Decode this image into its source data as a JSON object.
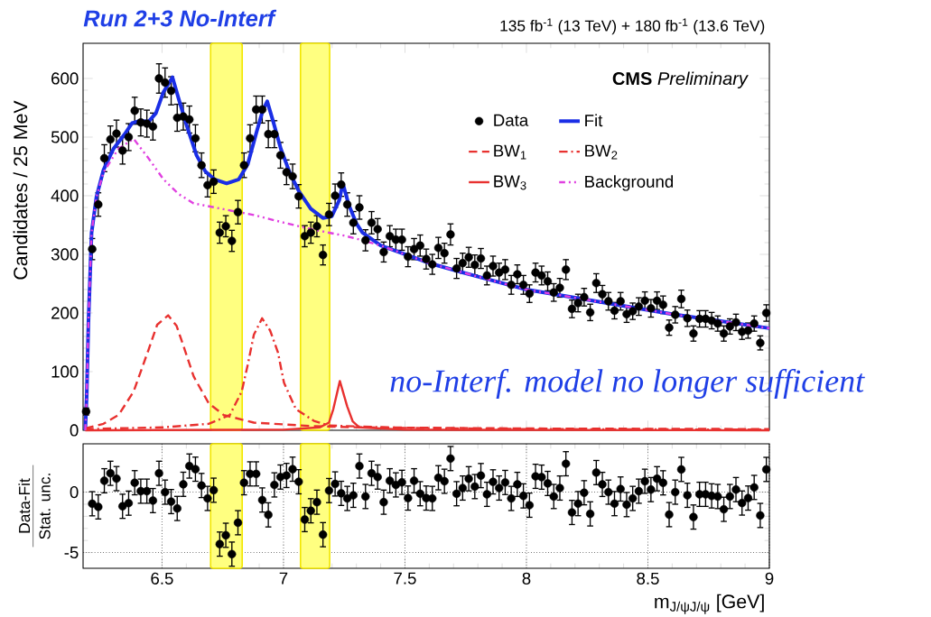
{
  "chart_data": [
    {
      "type": "scatter",
      "title": "135 fb$^{-1}$ (13 TeV) + 180 fb$^{-1}$ (13.6 TeV)",
      "ylabel": "Candidates / 25 MeV",
      "annotations": [
        "Run 2+3 No-Interf",
        "**CMS** *Preliminary*",
        "no-Interf. model no longer sufficient"
      ],
      "x": [
        6.1875,
        6.2125,
        6.2375,
        6.2625,
        6.2875,
        6.3125,
        6.3375,
        6.3625,
        6.3875,
        6.4125,
        6.4375,
        6.4625,
        6.4875,
        6.5125,
        6.5375,
        6.5625,
        6.5875,
        6.6125,
        6.6375,
        6.6625,
        6.6875,
        6.7125,
        6.7375,
        6.7625,
        6.7875,
        6.8125,
        6.8375,
        6.8625,
        6.8875,
        6.9125,
        6.9375,
        6.9625,
        6.9875,
        7.0125,
        7.0375,
        7.0625,
        7.0875,
        7.1125,
        7.1375,
        7.1625,
        7.1875,
        7.2125,
        7.2375,
        7.2625,
        7.2875,
        7.3125,
        7.3375,
        7.3625,
        7.3875,
        7.4125,
        7.4375,
        7.4625,
        7.4875,
        7.5125,
        7.5375,
        7.5625,
        7.5875,
        7.6125,
        7.6375,
        7.6625,
        7.6875,
        7.7125,
        7.7375,
        7.7625,
        7.7875,
        7.8125,
        7.8375,
        7.8625,
        7.8875,
        7.9125,
        7.9375,
        7.9625,
        7.9875,
        8.0125,
        8.0375,
        8.0625,
        8.0875,
        8.1125,
        8.1375,
        8.1625,
        8.1875,
        8.2125,
        8.2375,
        8.2625,
        8.2875,
        8.3125,
        8.3375,
        8.3625,
        8.3875,
        8.4125,
        8.4375,
        8.4625,
        8.4875,
        8.5125,
        8.5375,
        8.5625,
        8.5875,
        8.6125,
        8.6375,
        8.6625,
        8.6875,
        8.7125,
        8.7375,
        8.7625,
        8.7875,
        8.8125,
        8.8375,
        8.8625,
        8.8875,
        8.9125,
        8.9375,
        8.9625,
        8.9875
      ],
      "series": [
        {
          "name": "Data",
          "type": "scatter",
          "color": "#000000",
          "marker": "circle",
          "values": [
            32,
            309,
            385,
            464,
            496,
            506,
            477,
            500,
            545,
            525,
            523,
            518,
            600,
            593,
            579,
            533,
            535,
            530,
            498,
            452,
            418,
            424,
            337,
            348,
            323,
            372,
            452,
            498,
            547,
            547,
            505,
            505,
            469,
            440,
            433,
            399,
            331,
            337,
            348,
            299,
            368,
            400,
            419,
            385,
            354,
            380,
            324,
            354,
            343,
            304,
            331,
            325,
            325,
            296,
            309,
            315,
            292,
            283,
            311,
            302,
            334,
            276,
            285,
            295,
            282,
            293,
            264,
            280,
            269,
            274,
            248,
            266,
            248,
            233,
            269,
            264,
            254,
            235,
            243,
            274,
            207,
            217,
            227,
            201,
            251,
            232,
            220,
            204,
            220,
            198,
            203,
            211,
            221,
            208,
            221,
            214,
            175,
            197,
            224,
            191,
            165,
            190,
            190,
            187,
            182,
            165,
            177,
            184,
            168,
            170,
            182,
            149,
            200
          ],
          "errors": [
            6,
            18,
            20,
            23,
            23,
            23,
            23,
            23,
            23,
            23,
            23,
            23,
            25,
            25,
            24,
            23,
            23,
            23,
            23,
            21,
            20,
            20,
            18,
            18,
            18,
            20,
            21,
            23,
            23,
            23,
            23,
            23,
            22,
            21,
            21,
            20,
            18,
            18,
            18,
            17,
            19,
            20,
            20,
            20,
            19,
            20,
            18,
            19,
            18,
            17,
            18,
            18,
            18,
            17,
            18,
            18,
            17,
            17,
            18,
            17,
            18,
            17,
            17,
            17,
            17,
            17,
            16,
            17,
            16,
            17,
            16,
            16,
            16,
            15,
            16,
            16,
            16,
            15,
            16,
            17,
            15,
            15,
            15,
            14,
            16,
            15,
            15,
            14,
            15,
            14,
            14,
            15,
            15,
            15,
            15,
            15,
            13,
            14,
            15,
            14,
            13,
            14,
            14,
            14,
            13,
            13,
            13,
            14,
            13,
            13,
            13,
            12,
            14
          ]
        },
        {
          "name": "Fit",
          "type": "line",
          "color": "#1a2ee6",
          "line_style": "solid",
          "x": [
            6.184,
            6.19,
            6.197,
            6.21,
            6.23,
            6.259,
            6.3,
            6.346,
            6.377,
            6.41,
            6.444,
            6.475,
            6.506,
            6.543,
            6.568,
            6.605,
            6.642,
            6.679,
            6.716,
            6.766,
            6.816,
            6.853,
            6.89,
            6.915,
            6.933,
            6.958,
            6.989,
            7.026,
            7.063,
            7.112,
            7.162,
            7.199,
            7.23,
            7.244,
            7.27,
            7.301,
            7.325,
            7.4,
            7.6,
            7.8,
            8.0,
            8.2,
            8.4,
            8.6,
            8.8,
            9.0
          ],
          "values": [
            0,
            60,
            184,
            337,
            398,
            444,
            480,
            505,
            524,
            528,
            526,
            541,
            577,
            602,
            566,
            515,
            469,
            441,
            428,
            421,
            428,
            454,
            510,
            546,
            561,
            526,
            480,
            439,
            408,
            378,
            362,
            365,
            393,
            421,
            383,
            352,
            337,
            315,
            285,
            262,
            240,
            226,
            212,
            198,
            186,
            174
          ]
        },
        {
          "name": "BW$_{1}$",
          "type": "line",
          "color": "#e8312f",
          "line_style": "dashed",
          "x": [
            6.184,
            6.259,
            6.321,
            6.383,
            6.445,
            6.48,
            6.525,
            6.56,
            6.593,
            6.63,
            6.692,
            6.754,
            6.878,
            7.125,
            7.311,
            8.0,
            9.0
          ],
          "values": [
            3,
            11,
            26,
            66,
            138,
            180,
            196,
            178,
            138,
            92,
            46,
            26,
            13,
            7,
            5,
            3,
            2
          ]
        },
        {
          "name": "BW$_{2}$",
          "type": "line",
          "color": "#e8312f",
          "line_style": "dashdot",
          "x": [
            6.184,
            6.506,
            6.692,
            6.779,
            6.828,
            6.853,
            6.878,
            6.912,
            6.945,
            6.977,
            7.002,
            7.051,
            7.125,
            7.187,
            7.5,
            8.0,
            9.0
          ],
          "values": [
            2,
            5,
            11,
            26,
            66,
            112,
            163,
            191,
            170,
            133,
            81,
            36,
            16,
            8,
            4,
            2,
            1
          ]
        },
        {
          "name": "BW$_{3}$",
          "type": "line",
          "color": "#e8312f",
          "line_style": "solid",
          "x": [
            6.184,
            7.0,
            7.15,
            7.187,
            7.205,
            7.232,
            7.262,
            7.285,
            7.311,
            7.5,
            9.0
          ],
          "values": [
            0,
            1,
            5,
            13,
            36,
            84,
            41,
            15,
            5,
            1,
            0
          ]
        },
        {
          "name": "Background",
          "type": "line",
          "color": "#e040e0",
          "line_style": "dashdotdot",
          "x": [
            6.184,
            6.19,
            6.197,
            6.21,
            6.23,
            6.259,
            6.32,
            6.383,
            6.444,
            6.506,
            6.568,
            6.63,
            6.754,
            6.878,
            7.002,
            7.125,
            7.249,
            7.325,
            7.4,
            7.6,
            7.8,
            8.0,
            8.2,
            8.4,
            8.6,
            8.8,
            9.0
          ],
          "values": [
            0,
            60,
            184,
            337,
            398,
            440,
            480,
            497,
            464,
            428,
            403,
            387,
            377,
            367,
            354,
            342,
            332,
            324,
            315,
            285,
            262,
            240,
            226,
            212,
            198,
            186,
            174
          ]
        }
      ],
      "xlim": [
        6.175,
        9.0
      ],
      "xticks": [
        6.5,
        7,
        7.5,
        8,
        8.5,
        9
      ],
      "ylim": [
        0,
        660
      ],
      "yticks": [
        0,
        100,
        200,
        300,
        400,
        500,
        600
      ],
      "tick_labels": "y",
      "legend": "top right",
      "bands": [
        {
          "axis": "x",
          "from": 6.7,
          "to": 6.83,
          "color": "#ffff80"
        },
        {
          "axis": "x",
          "from": 7.07,
          "to": 7.19,
          "color": "#ffff80"
        }
      ]
    },
    {
      "type": "scatter",
      "xlabel": "m$_{J/ψJ/ψ}$ [GeV]",
      "ylabel": "Data-Fit",
      "annotations": [
        "Stat. unc."
      ],
      "x": [
        6.2125,
        6.2375,
        6.2625,
        6.2875,
        6.3125,
        6.3375,
        6.3625,
        6.3875,
        6.4125,
        6.4375,
        6.4625,
        6.4875,
        6.5125,
        6.5375,
        6.5625,
        6.5875,
        6.6125,
        6.6375,
        6.6625,
        6.6875,
        6.7125,
        6.7375,
        6.7625,
        6.7875,
        6.8125,
        6.8375,
        6.8625,
        6.8875,
        6.9125,
        6.9375,
        6.9625,
        6.9875,
        7.0125,
        7.0375,
        7.0625,
        7.0875,
        7.1125,
        7.1375,
        7.1625,
        7.1875,
        7.2125,
        7.2375,
        7.2625,
        7.2875,
        7.3125,
        7.3375,
        7.3625,
        7.3875,
        7.4125,
        7.4375,
        7.4625,
        7.4875,
        7.5125,
        7.5375,
        7.5625,
        7.5875,
        7.6125,
        7.6375,
        7.6625,
        7.6875,
        7.7125,
        7.7375,
        7.7625,
        7.7875,
        7.8125,
        7.8375,
        7.8625,
        7.8875,
        7.9125,
        7.9375,
        7.9625,
        7.9875,
        8.0125,
        8.0375,
        8.0625,
        8.0875,
        8.1125,
        8.1375,
        8.1625,
        8.1875,
        8.2125,
        8.2375,
        8.2625,
        8.2875,
        8.3125,
        8.3375,
        8.3625,
        8.3875,
        8.4125,
        8.4375,
        8.4625,
        8.4875,
        8.5125,
        8.5375,
        8.5625,
        8.5875,
        8.6125,
        8.6375,
        8.6625,
        8.6875,
        8.7125,
        8.7375,
        8.7625,
        8.7875,
        8.8125,
        8.8375,
        8.8625,
        8.8875,
        8.9125,
        8.9375,
        8.9625,
        8.9875
      ],
      "values": [
        -0.96,
        -1.22,
        0.94,
        1.56,
        1.12,
        -1.17,
        -0.91,
        0.78,
        0.08,
        0.08,
        -0.7,
        1.56,
        0,
        -0.78,
        -1.35,
        0.65,
        2.16,
        1.9,
        0.55,
        -0.52,
        0.16,
        -4.3,
        -3.57,
        -5.13,
        -2.53,
        0.78,
        1.51,
        1.51,
        -0.65,
        -1.88,
        0.6,
        1.25,
        1.38,
        1.9,
        0.86,
        -2.27,
        -1.54,
        -0.83,
        -3.52,
        0.13,
        0.68,
        -0.1,
        -0.52,
        -0.26,
        2.16,
        -0.36,
        1.56,
        1.25,
        -0.83,
        0.94,
        0.6,
        0.81,
        -0.49,
        0.94,
        -0.13,
        -0.49,
        -0.52,
        1.19,
        0.9,
        2.78,
        -0.13,
        0.34,
        1.11,
        0.46,
        1.37,
        -0.18,
        0.85,
        0.34,
        0.8,
        -0.52,
        0.64,
        -0.31,
        -1.08,
        1.31,
        1.24,
        0.72,
        -0.36,
        0.34,
        2.35,
        -1.68,
        -0.95,
        -0.05,
        -1.8,
        1.62,
        0.64,
        0,
        -0.95,
        0.26,
        -1.03,
        -0.52,
        0.08,
        0.9,
        0.21,
        1.11,
        0.77,
        -1.86,
        0,
        1.88,
        -0.26,
        -2.06,
        -0.18,
        -0.18,
        -0.31,
        -0.36,
        -1.42,
        -0.36,
        0.21,
        -0.9,
        -0.49,
        0.39,
        -1.93,
        1.88
      ],
      "errors": [
        1,
        1,
        1,
        1,
        1,
        1,
        1,
        1,
        1,
        1,
        1,
        1,
        1,
        1,
        1,
        1,
        1,
        1,
        1,
        1,
        1,
        1,
        1,
        1,
        1,
        1,
        1,
        1,
        1,
        1,
        1,
        1,
        1,
        1,
        1,
        1,
        1,
        1,
        1,
        1,
        1,
        1,
        1,
        1,
        1,
        1,
        1,
        1,
        1,
        1,
        1,
        1,
        1,
        1,
        1,
        1,
        1,
        1,
        1,
        1,
        1,
        1,
        1,
        1,
        1,
        1,
        1,
        1,
        1,
        1,
        1,
        1,
        1,
        1,
        1,
        1,
        1,
        1,
        1,
        1,
        1,
        1,
        1,
        1,
        1,
        1,
        1,
        1,
        1,
        1,
        1,
        1,
        1,
        1,
        1,
        1,
        1,
        1,
        1,
        1,
        1,
        1,
        1,
        1,
        1,
        1,
        1,
        1,
        1,
        1,
        1,
        1
      ],
      "color": "#000000",
      "marker": "circle",
      "xlim": [
        6.175,
        9.0
      ],
      "xticks": [
        6.5,
        7,
        7.5,
        8,
        8.5,
        9
      ],
      "ylim": [
        -6.3,
        4
      ],
      "yticks": [
        -5,
        0
      ],
      "grid": true,
      "bands": [
        {
          "axis": "x",
          "from": 6.7,
          "to": 6.83,
          "color": "#ffff80"
        },
        {
          "axis": "x",
          "from": 7.07,
          "to": 7.19,
          "color": "#ffff80"
        }
      ]
    }
  ]
}
